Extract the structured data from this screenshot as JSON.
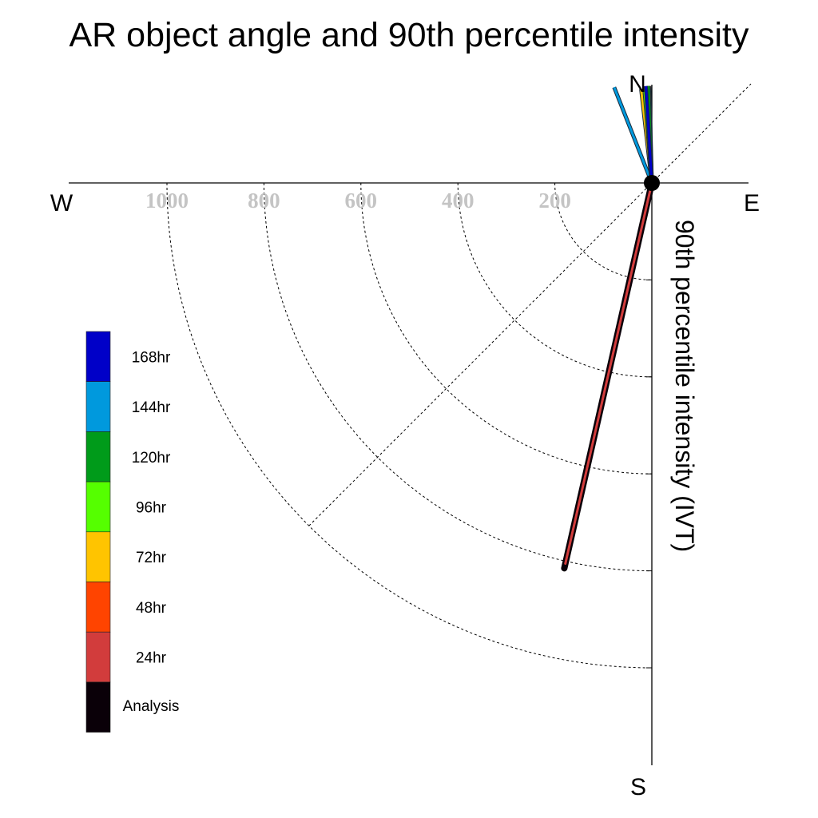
{
  "chart_data": {
    "type": "polar",
    "title": "AR object angle and 90th percentile intensity",
    "radial_label": "90th percentile intensity (IVT)",
    "compass": {
      "north": "N",
      "south": "S",
      "east": "E",
      "west": "W"
    },
    "radial_ticks": [
      {
        "value": 200,
        "label": "200"
      },
      {
        "value": 400,
        "label": "400"
      },
      {
        "value": 600,
        "label": "600"
      },
      {
        "value": 800,
        "label": "800"
      },
      {
        "value": 1000,
        "label": "1000"
      }
    ],
    "rlim": [
      0,
      1000
    ],
    "series": [
      {
        "name": "Analysis",
        "color": "#0a0008",
        "angle_deg": 192.8,
        "intensity": 815
      },
      {
        "name": "24hr",
        "color": "#d23c3c",
        "angle_deg": 192.8,
        "intensity": 805
      },
      {
        "name": "48hr",
        "color": "#ff4400",
        "angle_deg": 358.5,
        "intensity": 200
      },
      {
        "name": "72hr",
        "color": "#ffc400",
        "angle_deg": 353.5,
        "intensity": 195
      },
      {
        "name": "96hr",
        "color": "#55ff00",
        "angle_deg": 355.5,
        "intensity": 198
      },
      {
        "name": "120hr",
        "color": "#009b1a",
        "angle_deg": 358.0,
        "intensity": 200
      },
      {
        "name": "144hr",
        "color": "#0099dd",
        "angle_deg": 338.5,
        "intensity": 212
      },
      {
        "name": "168hr",
        "color": "#0000c8",
        "angle_deg": 356.5,
        "intensity": 200
      }
    ],
    "legend_order": [
      "168hr",
      "144hr",
      "120hr",
      "96hr",
      "72hr",
      "48hr",
      "24hr",
      "Analysis"
    ]
  }
}
